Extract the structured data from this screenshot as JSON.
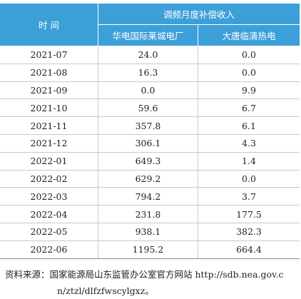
{
  "table": {
    "header": {
      "time": "时 间",
      "group": "调频月度补偿收入",
      "columns": [
        "华电国际莱城电厂",
        "大唐临清热电"
      ]
    },
    "rows": [
      [
        "2021-07",
        "24.0",
        "0.0"
      ],
      [
        "2021-08",
        "16.3",
        "0.0"
      ],
      [
        "2021-09",
        "0.0",
        "9.9"
      ],
      [
        "2021-10",
        "59.6",
        "6.7"
      ],
      [
        "2021-11",
        "357.8",
        "6.1"
      ],
      [
        "2021-12",
        "306.1",
        "4.3"
      ],
      [
        "2022-01",
        "649.3",
        "1.4"
      ],
      [
        "2022-02",
        "629.2",
        "0.0"
      ],
      [
        "2022-03",
        "794.2",
        "3.7"
      ],
      [
        "2022-04",
        "231.8",
        "177.5"
      ],
      [
        "2022-05",
        "938.1",
        "382.3"
      ],
      [
        "2022-06",
        "1195.2",
        "664.4"
      ]
    ]
  },
  "source": "资料来源：国家能源局山东监管办公室官方网站 http://sdb.nea.gov.cn/ztzl/dlfzfwscylgxz。"
}
